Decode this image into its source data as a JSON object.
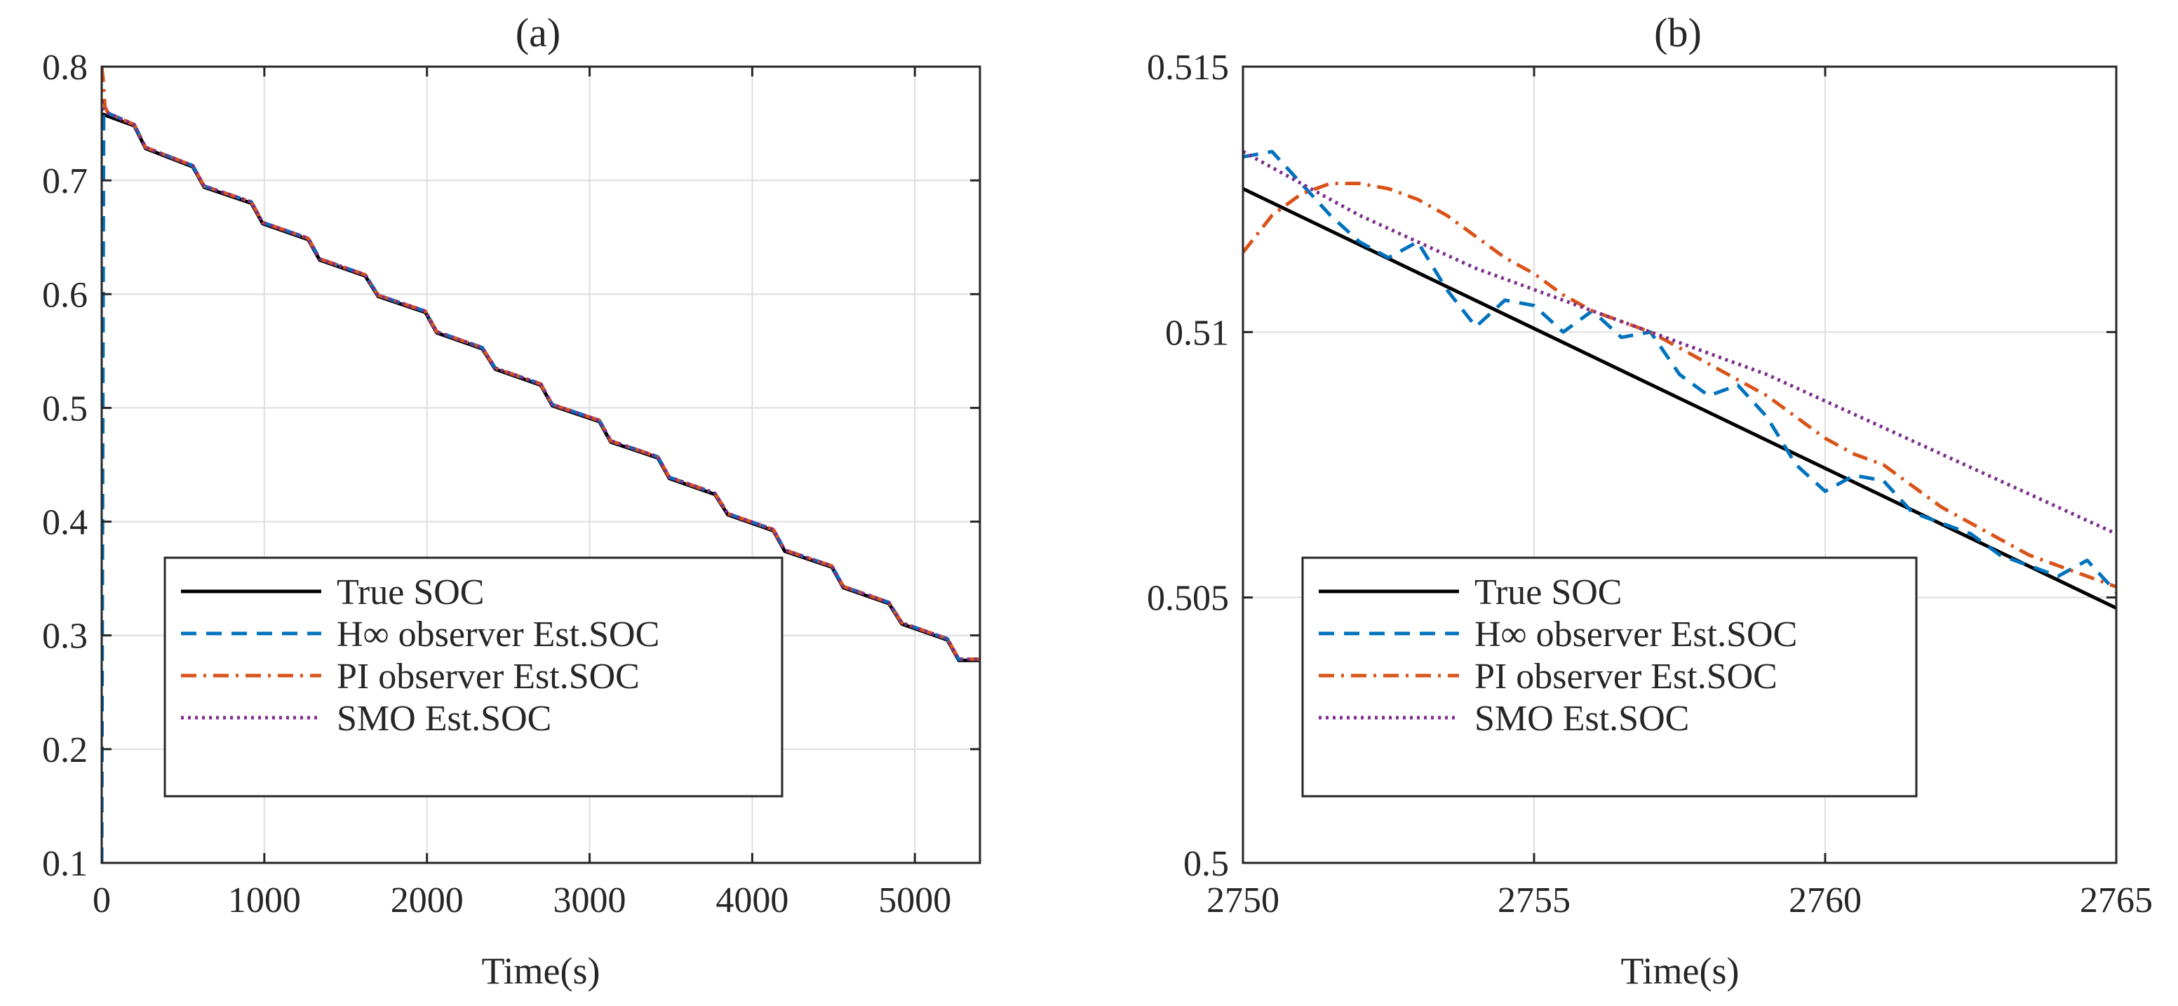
{
  "chart_data": [
    {
      "id": "a",
      "type": "line",
      "title": "(a)",
      "xlabel": "Time(s)",
      "ylabel": "",
      "xlim": [
        0,
        5400
      ],
      "ylim": [
        0.1,
        0.8
      ],
      "xticks": [
        0,
        1000,
        2000,
        3000,
        4000,
        5000
      ],
      "xtick_labels": [
        "0",
        "1000",
        "2000",
        "3000",
        "4000",
        "5000"
      ],
      "yticks": [
        0.1,
        0.2,
        0.3,
        0.4,
        0.5,
        0.6,
        0.7,
        0.8
      ],
      "ytick_labels": [
        "0.1",
        "0.2",
        "0.3",
        "0.4",
        "0.5",
        "0.6",
        "0.7",
        "0.8"
      ],
      "grid": true,
      "legend_position": "bottom-center",
      "series": [
        {
          "name": "True SOC",
          "style": "solid",
          "color": "#000000",
          "x": [
            0,
            10,
            200,
            270,
            560,
            630,
            920,
            990,
            1270,
            1340,
            1620,
            1700,
            1990,
            2060,
            2340,
            2420,
            2700,
            2770,
            3060,
            3130,
            3420,
            3490,
            3770,
            3850,
            4130,
            4200,
            4490,
            4560,
            4840,
            4920,
            5200,
            5270,
            5400
          ],
          "y": [
            0.758,
            0.758,
            0.748,
            0.728,
            0.712,
            0.694,
            0.68,
            0.662,
            0.648,
            0.63,
            0.616,
            0.598,
            0.584,
            0.566,
            0.552,
            0.534,
            0.52,
            0.502,
            0.488,
            0.47,
            0.456,
            0.438,
            0.424,
            0.406,
            0.392,
            0.374,
            0.36,
            0.342,
            0.328,
            0.31,
            0.296,
            0.278,
            0.278
          ]
        },
        {
          "name": "H∞ observer Est.SOC",
          "style": "dashed",
          "color": "#0072BD",
          "x": [
            0,
            6,
            12,
            25,
            200,
            270,
            560,
            630,
            920,
            990,
            1270,
            1340,
            1620,
            1700,
            1990,
            2060,
            2340,
            2420,
            2700,
            2770,
            3060,
            3130,
            3420,
            3490,
            3770,
            3850,
            4130,
            4200,
            4490,
            4560,
            4840,
            4920,
            5200,
            5270,
            5400
          ],
          "y": [
            0.1,
            0.45,
            0.762,
            0.76,
            0.749,
            0.729,
            0.713,
            0.695,
            0.681,
            0.663,
            0.649,
            0.631,
            0.617,
            0.599,
            0.585,
            0.567,
            0.553,
            0.535,
            0.521,
            0.503,
            0.489,
            0.471,
            0.457,
            0.439,
            0.425,
            0.407,
            0.393,
            0.375,
            0.361,
            0.343,
            0.329,
            0.311,
            0.297,
            0.279,
            0.279
          ]
        },
        {
          "name": "PI observer Est.SOC",
          "style": "dashdot",
          "color": "#D95319",
          "x": [
            0,
            8,
            20,
            40,
            200,
            270,
            560,
            630,
            920,
            990,
            1270,
            1340,
            1620,
            1700,
            1990,
            2060,
            2340,
            2420,
            2700,
            2770,
            3060,
            3130,
            3420,
            3490,
            3770,
            3850,
            4130,
            4200,
            4490,
            4560,
            4840,
            4920,
            5200,
            5270,
            5400
          ],
          "y": [
            0.8,
            0.79,
            0.765,
            0.759,
            0.749,
            0.729,
            0.713,
            0.695,
            0.681,
            0.663,
            0.649,
            0.631,
            0.617,
            0.599,
            0.585,
            0.567,
            0.553,
            0.535,
            0.521,
            0.503,
            0.489,
            0.471,
            0.457,
            0.439,
            0.425,
            0.407,
            0.393,
            0.375,
            0.361,
            0.343,
            0.329,
            0.311,
            0.297,
            0.279,
            0.279
          ]
        },
        {
          "name": "SMO Est.SOC",
          "style": "dotted",
          "color": "#7E2F8E",
          "x": [
            0,
            10,
            25,
            200,
            270,
            560,
            630,
            920,
            990,
            1270,
            1340,
            1620,
            1700,
            1990,
            2060,
            2340,
            2420,
            2700,
            2770,
            3060,
            3130,
            3420,
            3490,
            3770,
            3850,
            4130,
            4200,
            4490,
            4560,
            4840,
            4920,
            5200,
            5270,
            5400
          ],
          "y": [
            0.77,
            0.762,
            0.76,
            0.749,
            0.729,
            0.713,
            0.695,
            0.681,
            0.663,
            0.649,
            0.631,
            0.617,
            0.599,
            0.585,
            0.567,
            0.553,
            0.535,
            0.521,
            0.503,
            0.489,
            0.471,
            0.457,
            0.439,
            0.425,
            0.407,
            0.393,
            0.375,
            0.361,
            0.343,
            0.329,
            0.311,
            0.297,
            0.279,
            0.279
          ]
        }
      ]
    },
    {
      "id": "b",
      "type": "line",
      "title": "(b)",
      "xlabel": "Time(s)",
      "ylabel": "",
      "xlim": [
        2750,
        2765
      ],
      "ylim": [
        0.5,
        0.515
      ],
      "xticks": [
        2750,
        2755,
        2760,
        2765
      ],
      "xtick_labels": [
        "2750",
        "2755",
        "2760",
        "2765"
      ],
      "yticks": [
        0.5,
        0.505,
        0.51,
        0.515
      ],
      "ytick_labels": [
        "0.5",
        "0.505",
        "0.51",
        "0.515"
      ],
      "grid": true,
      "legend_position": "bottom-center",
      "series": [
        {
          "name": "True SOC",
          "style": "solid",
          "color": "#000000",
          "x": [
            2750,
            2765
          ],
          "y": [
            0.5127,
            0.5048
          ]
        },
        {
          "name": "H∞ observer Est.SOC",
          "style": "dashed",
          "color": "#0072BD",
          "x": [
            2750,
            2750.5,
            2751,
            2751.5,
            2752,
            2752.5,
            2753,
            2753.5,
            2754,
            2754.5,
            2755,
            2755.5,
            2756,
            2756.5,
            2757,
            2757.5,
            2758,
            2758.5,
            2759,
            2759.5,
            2760,
            2760.5,
            2761,
            2761.5,
            2762,
            2762.5,
            2763,
            2763.5,
            2764,
            2764.5,
            2765
          ],
          "y": [
            0.5133,
            0.5134,
            0.5128,
            0.5122,
            0.5117,
            0.5114,
            0.5117,
            0.5108,
            0.5101,
            0.5106,
            0.5105,
            0.51,
            0.5104,
            0.5099,
            0.51,
            0.5092,
            0.5088,
            0.509,
            0.5084,
            0.5075,
            0.507,
            0.5073,
            0.5072,
            0.5066,
            0.5064,
            0.5062,
            0.5058,
            0.5056,
            0.5054,
            0.5057,
            0.5051
          ]
        },
        {
          "name": "PI observer Est.SOC",
          "style": "dashdot",
          "color": "#D95319",
          "x": [
            2750,
            2750.5,
            2751,
            2751.5,
            2752,
            2752.5,
            2753,
            2753.5,
            2754,
            2754.5,
            2755,
            2755.5,
            2756,
            2756.5,
            2757,
            2757.5,
            2758,
            2758.5,
            2759,
            2759.5,
            2760,
            2760.5,
            2761,
            2761.5,
            2762,
            2762.5,
            2763,
            2763.5,
            2764,
            2764.5,
            2765
          ],
          "y": [
            0.5115,
            0.5122,
            0.5126,
            0.5128,
            0.5128,
            0.5127,
            0.5125,
            0.5122,
            0.5118,
            0.5114,
            0.5111,
            0.5107,
            0.5104,
            0.5102,
            0.51,
            0.5097,
            0.5094,
            0.5091,
            0.5088,
            0.5084,
            0.508,
            0.5077,
            0.5075,
            0.5071,
            0.5067,
            0.5064,
            0.5061,
            0.5058,
            0.5056,
            0.5054,
            0.5052
          ]
        },
        {
          "name": "SMO Est.SOC",
          "style": "dotted",
          "color": "#7E2F8E",
          "x": [
            2750,
            2751,
            2752,
            2753,
            2754,
            2755,
            2756,
            2757,
            2758,
            2759,
            2760,
            2761,
            2762,
            2763,
            2764,
            2765
          ],
          "y": [
            0.5134,
            0.5128,
            0.5122,
            0.5117,
            0.5112,
            0.5108,
            0.5104,
            0.51,
            0.5096,
            0.5092,
            0.5087,
            0.5082,
            0.5077,
            0.5072,
            0.5067,
            0.5062
          ]
        }
      ]
    }
  ]
}
